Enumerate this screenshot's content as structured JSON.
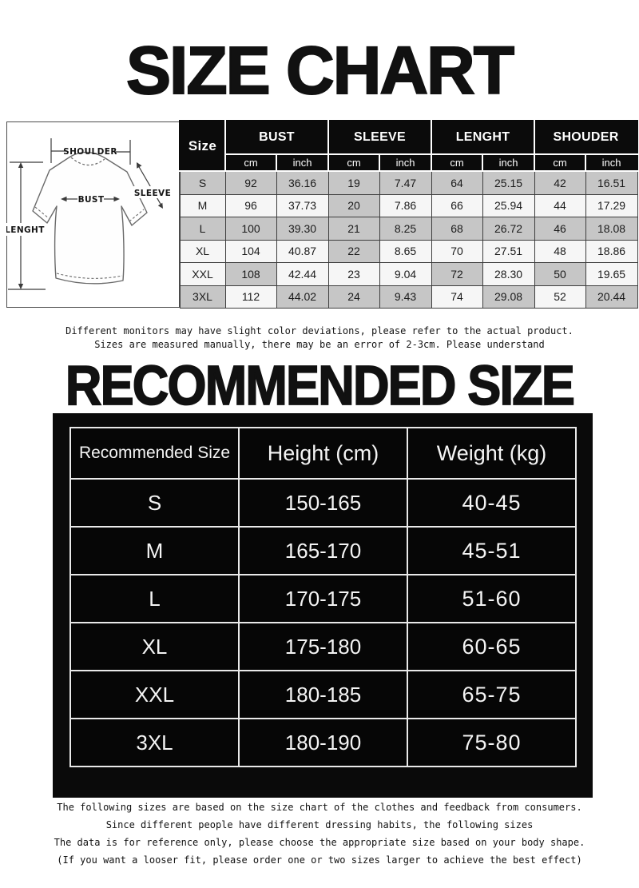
{
  "titles": {
    "main": "SIZE CHART",
    "recommended": "RECOMMENDED SIZE"
  },
  "diagram": {
    "shoulder_label": "SHOULDER",
    "sleeve_label": "SLEEVE",
    "bust_label": "BUST",
    "length_label": "LENGHT"
  },
  "size_table": {
    "corner_label": "Size",
    "groups": [
      "BUST",
      "SLEEVE",
      "LENGHT",
      "SHOUDER"
    ],
    "units": [
      "cm",
      "inch",
      "cm",
      "inch",
      "cm",
      "inch",
      "cm",
      "inch"
    ],
    "rows": [
      {
        "size": "S",
        "values": [
          "92",
          "36.16",
          "19",
          "7.47",
          "64",
          "25.15",
          "42",
          "16.51"
        ]
      },
      {
        "size": "M",
        "values": [
          "96",
          "37.73",
          "20",
          "7.86",
          "66",
          "25.94",
          "44",
          "17.29"
        ]
      },
      {
        "size": "L",
        "values": [
          "100",
          "39.30",
          "21",
          "8.25",
          "68",
          "26.72",
          "46",
          "18.08"
        ]
      },
      {
        "size": "XL",
        "values": [
          "104",
          "40.87",
          "22",
          "8.65",
          "70",
          "27.51",
          "48",
          "18.86"
        ]
      },
      {
        "size": "XXL",
        "values": [
          "108",
          "42.44",
          "23",
          "9.04",
          "72",
          "28.30",
          "50",
          "19.65"
        ]
      },
      {
        "size": "3XL",
        "values": [
          "112",
          "44.02",
          "24",
          "9.43",
          "74",
          "29.08",
          "52",
          "20.44"
        ]
      }
    ]
  },
  "notes": [
    "Different monitors may have slight color deviations, please refer to the actual product.",
    "Sizes are measured manually, there may be an error of 2-3cm. Please understand"
  ],
  "recommended_table": {
    "headers": [
      "Recommended Size",
      "Height (cm)",
      "Weight (kg)"
    ],
    "rows": [
      {
        "size": "S",
        "height": "150-165",
        "weight": "40-45"
      },
      {
        "size": "M",
        "height": "165-170",
        "weight": "45-51"
      },
      {
        "size": "L",
        "height": "170-175",
        "weight": "51-60"
      },
      {
        "size": "XL",
        "height": "175-180",
        "weight": "60-65"
      },
      {
        "size": "XXL",
        "height": "180-185",
        "weight": "65-75"
      },
      {
        "size": "3XL",
        "height": "180-190",
        "weight": "75-80"
      }
    ]
  },
  "footer_notes": [
    "The following sizes are based on the size chart of the clothes and feedback from consumers.",
    "Since different people have different dressing habits, the following sizes",
    "The data is for reference only, please choose the appropriate size based on your body shape.",
    "(If you want a looser fit, please order one or two sizes larger to achieve the best effect)"
  ],
  "colors": {
    "header_bg": "#0b0b0b",
    "panel_bg": "#0a0a0a",
    "panel_line": "#e9e9e9",
    "shaded_cell": "#c6c6c6",
    "light_cell": "#f6f6f6",
    "cell_border": "#3e3e3e"
  }
}
